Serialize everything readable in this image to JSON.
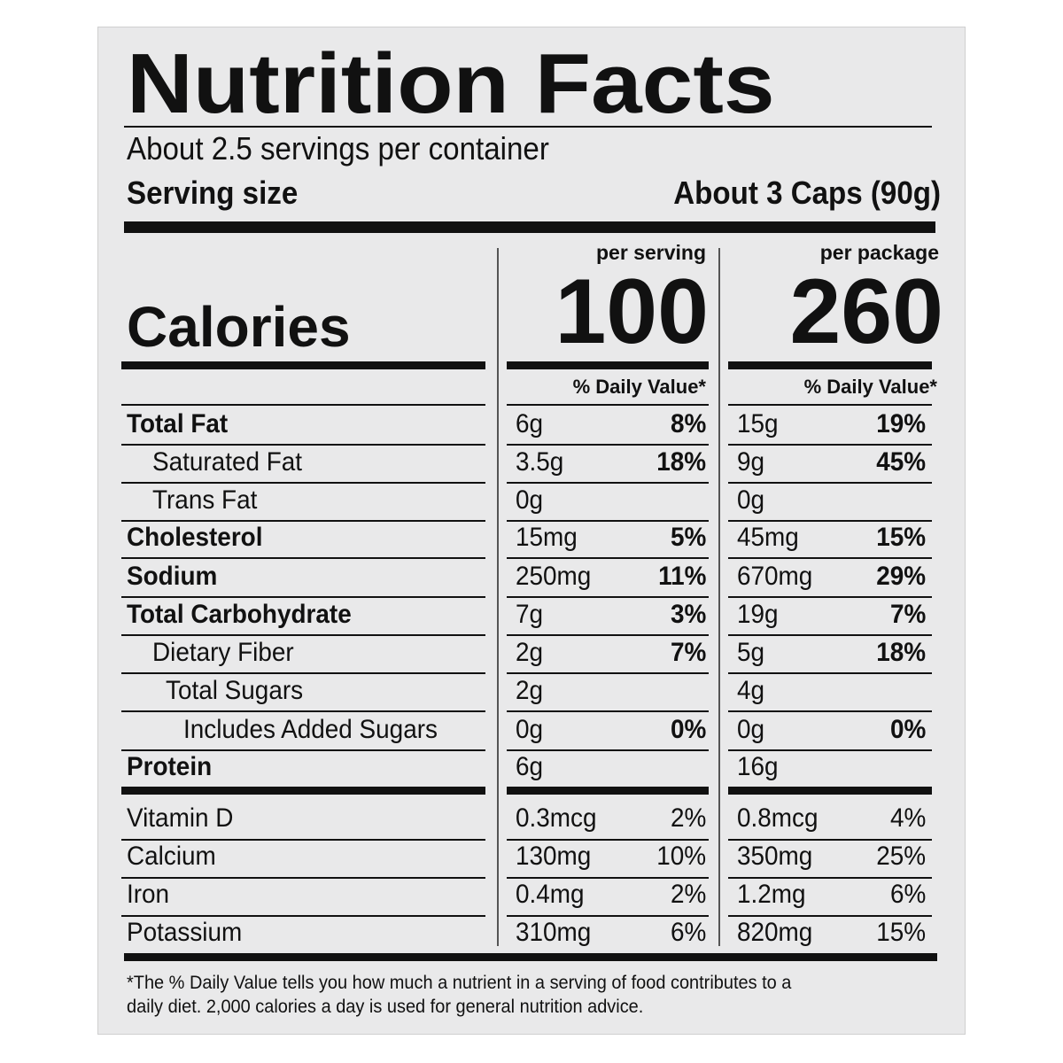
{
  "title": "Nutrition Facts",
  "servings": "About 2.5 servings per container",
  "serving_size": {
    "label": "Serving size",
    "value": "About 3 Caps (90g)"
  },
  "columns": {
    "per_serving": "per serving",
    "per_package": "per package"
  },
  "calories": {
    "label": "Calories",
    "per_serving": "100",
    "per_package": "260"
  },
  "daily_value_header": "% Daily Value*",
  "nutrients": [
    {
      "name": "Total Fat",
      "per_serving": {
        "amount": "6g",
        "dv": "8%"
      },
      "per_package": {
        "amount": "15g",
        "dv": "19%"
      }
    },
    {
      "name": "Saturated Fat",
      "per_serving": {
        "amount": "3.5g",
        "dv": "18%"
      },
      "per_package": {
        "amount": "9g",
        "dv": "45%"
      }
    },
    {
      "name": "Trans Fat",
      "per_serving": {
        "amount": "0g"
      },
      "per_package": {
        "amount": "0g"
      }
    },
    {
      "name": "Cholesterol",
      "per_serving": {
        "amount": "15mg",
        "dv": "5%"
      },
      "per_package": {
        "amount": "45mg",
        "dv": "15%"
      }
    },
    {
      "name": "Sodium",
      "per_serving": {
        "amount": "250mg",
        "dv": "11%"
      },
      "per_package": {
        "amount": "670mg",
        "dv": "29%"
      }
    },
    {
      "name": "Total Carbohydrate",
      "per_serving": {
        "amount": "7g",
        "dv": "3%"
      },
      "per_package": {
        "amount": "19g",
        "dv": "7%"
      }
    },
    {
      "name": "Dietary Fiber",
      "per_serving": {
        "amount": "2g",
        "dv": "7%"
      },
      "per_package": {
        "amount": "5g",
        "dv": "18%"
      }
    },
    {
      "name": "Total Sugars",
      "per_serving": {
        "amount": "2g"
      },
      "per_package": {
        "amount": "4g"
      }
    },
    {
      "name": "Includes Added Sugars",
      "per_serving": {
        "amount": "0g",
        "dv": "0%"
      },
      "per_package": {
        "amount": "0g",
        "dv": "0%"
      }
    },
    {
      "name": "Protein",
      "per_serving": {
        "amount": "6g"
      },
      "per_package": {
        "amount": "16g"
      }
    }
  ],
  "vitamins": [
    {
      "name": "Vitamin D",
      "per_serving": {
        "amount": "0.3mcg",
        "dv": "2%"
      },
      "per_package": {
        "amount": "0.8mcg",
        "dv": "4%"
      }
    },
    {
      "name": "Calcium",
      "per_serving": {
        "amount": "130mg",
        "dv": "10%"
      },
      "per_package": {
        "amount": "350mg",
        "dv": "25%"
      }
    },
    {
      "name": "Iron",
      "per_serving": {
        "amount": "0.4mg",
        "dv": "2%"
      },
      "per_package": {
        "amount": "1.2mg",
        "dv": "6%"
      }
    },
    {
      "name": "Potassium",
      "per_serving": {
        "amount": "310mg",
        "dv": "6%"
      },
      "per_package": {
        "amount": "820mg",
        "dv": "15%"
      }
    }
  ],
  "footnote": [
    "*The % Daily Value tells you how much a nutrient in a serving of food contributes to a",
    "daily diet. 2,000 calories a day is used for general nutrition advice."
  ]
}
